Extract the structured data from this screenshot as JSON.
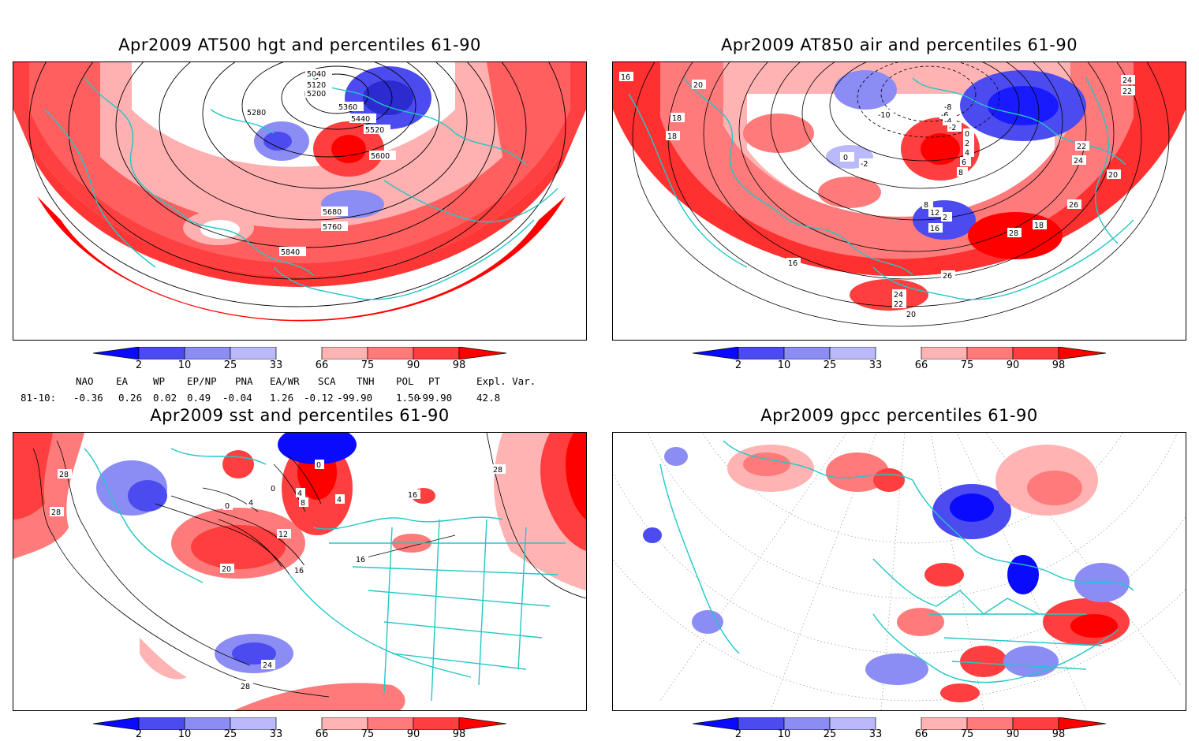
{
  "colors": {
    "coast": "#22c7c7",
    "contour": "#000000",
    "blue_2": "#0a0aff",
    "blue_10": "#4b4bf0",
    "blue_25": "#8c8cf5",
    "blue_33": "#b9b9fb",
    "red_66": "#ffb3b3",
    "red_75": "#ff7a7a",
    "red_90": "#ff3f3f",
    "red_98": "#ff0000"
  },
  "colorbar": {
    "ticks": [
      "2",
      "10",
      "25",
      "33",
      "66",
      "75",
      "90",
      "98"
    ]
  },
  "panels": {
    "p1": {
      "title": "Apr2009 AT500 hgt and percentiles 61-90",
      "contour_labels": [
        "5040",
        "5120",
        "5200",
        "5280",
        "5360",
        "5440",
        "5520",
        "5600",
        "5680",
        "5760",
        "5840"
      ]
    },
    "p2": {
      "title": "Apr2009 AT850 air and percentiles 61-90",
      "contour_labels": [
        "16",
        "20",
        "18",
        "18",
        "24",
        "22",
        "22",
        "24",
        "20",
        "26",
        "28",
        "18",
        "16",
        "26",
        "24",
        "22",
        "20",
        "0",
        "-2",
        "-10",
        "-8",
        "-6",
        "-4",
        "-2",
        "0",
        "2",
        "4",
        "6",
        "8",
        "12",
        "16",
        "8",
        "2"
      ]
    },
    "p3": {
      "title": "Apr2009 sst and percentiles 61-90",
      "contour_labels": [
        "28",
        "28",
        "0",
        "4",
        "0",
        "4",
        "8",
        "4",
        "0",
        "12",
        "16",
        "20",
        "16",
        "24",
        "28",
        "28",
        "16"
      ]
    },
    "p4": {
      "title": "Apr2009 gpcc percentiles 61-90"
    }
  },
  "indices": {
    "header": [
      "NAO",
      "EA",
      "WP",
      "EP/NP",
      "PNA",
      "EA/WR",
      "SCA",
      "TNH",
      "POL",
      "PT",
      "Expl. Var."
    ],
    "row_label": "81-10:",
    "values": [
      "-0.36",
      "0.26",
      "0.02",
      "0.49",
      "-0.04",
      "1.26",
      "-0.12",
      "-99.90",
      "1.50",
      "-99.90",
      "42.8"
    ]
  }
}
